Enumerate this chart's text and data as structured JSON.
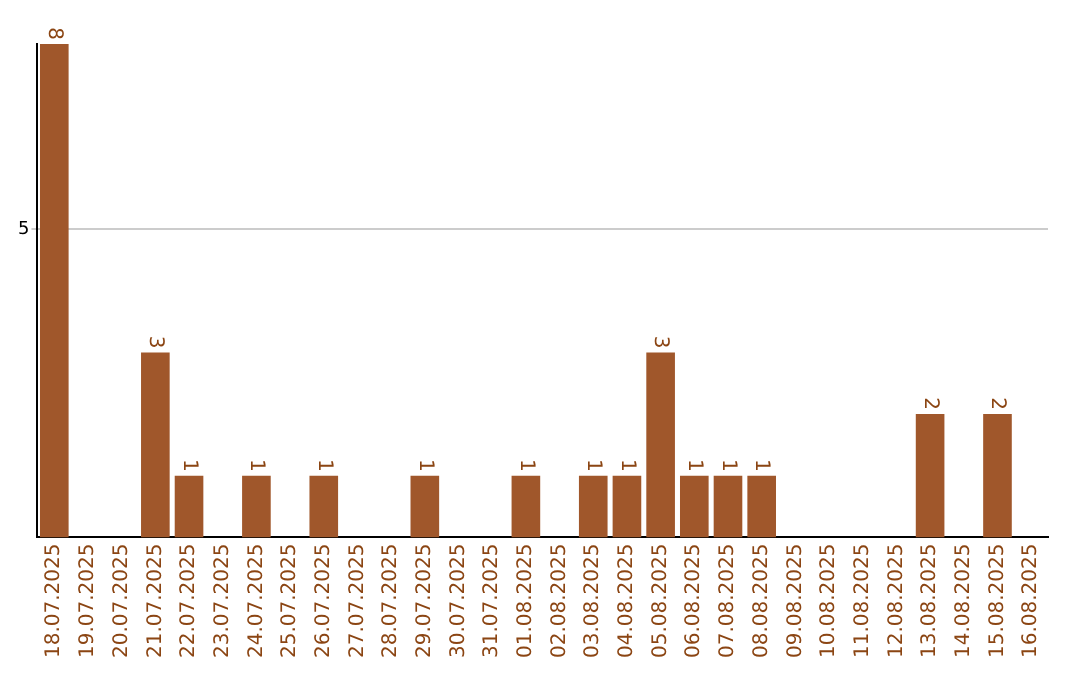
{
  "chart_data": {
    "type": "bar",
    "categories": [
      "18.07.2025",
      "19.07.2025",
      "20.07.2025",
      "21.07.2025",
      "22.07.2025",
      "23.07.2025",
      "24.07.2025",
      "25.07.2025",
      "26.07.2025",
      "27.07.2025",
      "28.07.2025",
      "29.07.2025",
      "30.07.2025",
      "31.07.2025",
      "01.08.2025",
      "02.08.2025",
      "03.08.2025",
      "04.08.2025",
      "05.08.2025",
      "06.08.2025",
      "07.08.2025",
      "08.08.2025",
      "09.08.2025",
      "10.08.2025",
      "11.08.2025",
      "12.08.2025",
      "13.08.2025",
      "14.08.2025",
      "15.08.2025",
      "16.08.2025"
    ],
    "values": [
      8,
      0,
      0,
      3,
      1,
      0,
      1,
      0,
      1,
      0,
      0,
      1,
      0,
      0,
      1,
      0,
      1,
      1,
      3,
      1,
      1,
      1,
      0,
      0,
      0,
      0,
      2,
      0,
      2,
      0
    ],
    "value_labels": [
      "8",
      null,
      null,
      "3",
      "1",
      null,
      "1",
      null,
      "1",
      null,
      null,
      "1",
      null,
      null,
      "1",
      null,
      "1",
      "1",
      "3",
      "1",
      "1",
      "1",
      null,
      null,
      null,
      null,
      "2",
      null,
      "2",
      null
    ],
    "color": "#a0572b",
    "ylim": [
      0,
      8
    ],
    "yticks": [
      5
    ],
    "grid": "y",
    "legend": false
  }
}
